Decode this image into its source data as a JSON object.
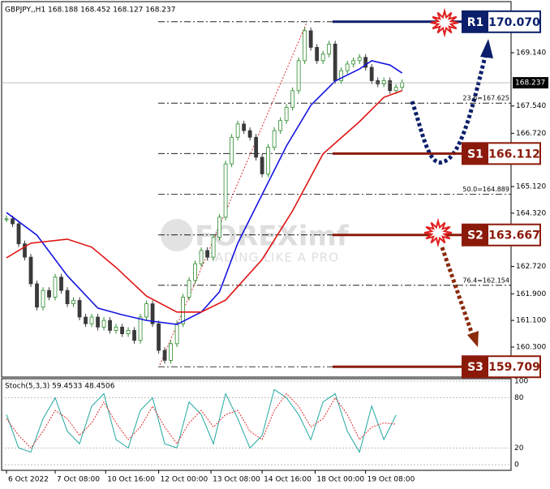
{
  "chart_data": [
    {
      "type": "candlestick",
      "title": "GBPJPY,,H1 168.188 168.452 168.127 168.237",
      "x": [
        0,
        1,
        2,
        3,
        4,
        5,
        6,
        7,
        8,
        9,
        10,
        11,
        12,
        13,
        14,
        15,
        16,
        17,
        18,
        19,
        20,
        21,
        22,
        23,
        24,
        25,
        26,
        27,
        28,
        29,
        30,
        31,
        32,
        33,
        34,
        35,
        36,
        37,
        38,
        39,
        40,
        41,
        42,
        43,
        44,
        45,
        46,
        47,
        48,
        49,
        50,
        51,
        52,
        53,
        54,
        55,
        56,
        57,
        58,
        59,
        60,
        61,
        62,
        63,
        64,
        65
      ],
      "values": [
        164.15,
        164.0,
        163.4,
        163.0,
        162.2,
        161.5,
        162.0,
        161.8,
        162.4,
        162.0,
        161.6,
        161.7,
        161.2,
        161.0,
        161.2,
        160.9,
        161.1,
        160.8,
        160.9,
        160.7,
        160.8,
        160.5,
        161.2,
        161.6,
        161.0,
        160.2,
        159.9,
        160.4,
        161.0,
        161.8,
        162.3,
        162.8,
        163.2,
        163.0,
        163.6,
        164.2,
        165.8,
        166.6,
        167.0,
        166.8,
        166.6,
        166.0,
        165.5,
        166.3,
        166.8,
        167.1,
        167.5,
        168.0,
        168.9,
        169.8,
        169.3,
        168.9,
        169.1,
        169.4,
        168.3,
        168.6,
        168.8,
        168.9,
        169.0,
        168.7,
        168.3,
        168.2,
        168.3,
        168.0,
        168.1,
        168.237
      ],
      "up_color": "#2e8b2e",
      "down_color": "#3a3a3a",
      "ma_lines": [
        {
          "color": "#1515e0",
          "x": [
            0,
            5,
            10,
            15,
            19,
            23,
            28,
            32,
            35,
            38,
            42,
            46,
            50,
            54,
            58,
            60,
            63,
            65
          ],
          "values": [
            164.34,
            163.66,
            162.44,
            161.47,
            161.27,
            161.1,
            160.98,
            161.35,
            161.96,
            163.42,
            164.88,
            166.34,
            167.56,
            168.29,
            168.65,
            168.9,
            168.77,
            168.53
          ]
        },
        {
          "color": "#e01515",
          "x": [
            0,
            4,
            10,
            14,
            18,
            23,
            28,
            32,
            36,
            42,
            47,
            52,
            58,
            62,
            65
          ],
          "values": [
            162.98,
            163.42,
            163.54,
            163.3,
            162.69,
            161.83,
            161.35,
            161.35,
            161.71,
            162.93,
            164.39,
            166.1,
            167.07,
            167.8,
            168.0
          ]
        }
      ],
      "xlim": [
        -0.8,
        82.9
      ],
      "xticks": [
        {
          "value": 0,
          "label": "6 Oct 2022"
        },
        {
          "value": 8,
          "label": "7 Oct 08:00"
        },
        {
          "value": 16.3,
          "label": "10 Oct 16:00"
        },
        {
          "value": 25,
          "label": "12 Oct 00:00"
        },
        {
          "value": 33.6,
          "label": "13 Oct 08:00"
        },
        {
          "value": 42,
          "label": "14 Oct 16:00"
        },
        {
          "value": 50.7,
          "label": "18 Oct 00:00"
        },
        {
          "value": 59,
          "label": "19 Oct 08:00"
        }
      ],
      "ylim": [
        159.398,
        170.674
      ],
      "yticks": [
        {
          "value": 169.14,
          "label": "169.140"
        },
        {
          "value": 167.54,
          "label": "167.540"
        },
        {
          "value": 166.72,
          "label": "166.720"
        },
        {
          "value": 165.12,
          "label": "165.120"
        },
        {
          "value": 164.32,
          "label": "164.320"
        },
        {
          "value": 162.72,
          "label": "162.720"
        },
        {
          "value": 161.9,
          "label": "161.900"
        },
        {
          "value": 161.1,
          "label": "161.100"
        },
        {
          "value": 160.3,
          "label": "160.300"
        }
      ],
      "last_price": 168.237,
      "fib_lines": [
        170.07,
        167.625,
        166.112,
        164.889,
        163.667,
        162.154,
        159.709
      ],
      "fib_labels": [
        {
          "value": 167.625,
          "label": "23.6=167.625"
        },
        {
          "value": 164.889,
          "label": "50.0=164.889"
        },
        {
          "value": 162.154,
          "label": "76.4=162.154"
        }
      ],
      "levels": [
        {
          "name": "R1",
          "value": 170.07,
          "value_label": "170.070",
          "color": "#0b1f6b"
        },
        {
          "name": "S1",
          "value": 166.112,
          "value_label": "166.112",
          "color": "#8b1a0a"
        },
        {
          "name": "S2",
          "value": 163.667,
          "value_label": "163.667",
          "color": "#8b1a0a"
        },
        {
          "name": "S3",
          "value": 159.709,
          "value_label": "159.709",
          "color": "#8b1a0a"
        }
      ],
      "watermark": "FOREXimf",
      "watermark_sub": "TRADING LIKE A PRO"
    },
    {
      "type": "line",
      "title": "Stoch(5,3,3) 59.4533 48.4506",
      "x": [
        0,
        2,
        4,
        6,
        8,
        10,
        12,
        14,
        16,
        18,
        20,
        22,
        24,
        26,
        28,
        30,
        32,
        34,
        36,
        38,
        40,
        42,
        44,
        46,
        48,
        50,
        52,
        54,
        56,
        58,
        60,
        62,
        64
      ],
      "series": [
        {
          "color": "#20a8a0",
          "values": [
            60,
            20,
            15,
            55,
            80,
            40,
            25,
            70,
            85,
            30,
            20,
            65,
            80,
            25,
            20,
            75,
            60,
            25,
            85,
            55,
            20,
            35,
            90,
            80,
            60,
            30,
            75,
            85,
            40,
            15,
            70,
            30,
            59.4533
          ]
        },
        {
          "color": "#e03030",
          "values": [
            55,
            35,
            20,
            40,
            65,
            55,
            35,
            50,
            75,
            50,
            30,
            45,
            70,
            45,
            25,
            50,
            65,
            45,
            60,
            65,
            40,
            30,
            65,
            85,
            70,
            45,
            55,
            80,
            60,
            30,
            45,
            50,
            48.4506
          ]
        }
      ],
      "xlim": [
        -0.8,
        82.9
      ],
      "ylim": [
        -6.8,
        102.9
      ],
      "yticks": [
        0,
        20,
        80,
        100
      ]
    }
  ]
}
